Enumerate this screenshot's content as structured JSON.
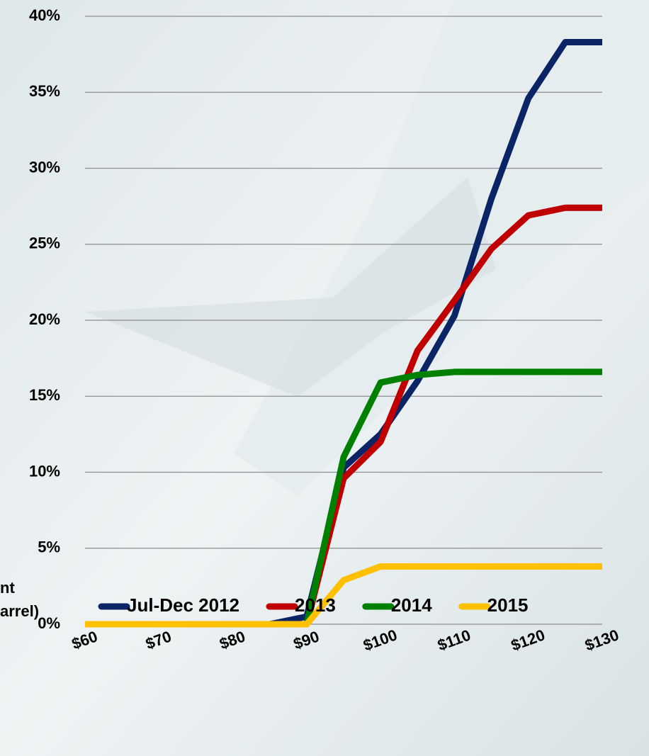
{
  "chart_data": {
    "type": "line",
    "x": [
      60,
      65,
      70,
      75,
      80,
      85,
      90,
      95,
      100,
      105,
      110,
      115,
      120,
      125,
      130
    ],
    "series": [
      {
        "name": "Jul-Dec 2012",
        "color": "#0b2466",
        "values": [
          0,
          0,
          0,
          0,
          0,
          0,
          0.5,
          10.3,
          12.5,
          16,
          20.3,
          28,
          34.6,
          38.3,
          38.3
        ]
      },
      {
        "name": "2013",
        "color": "#c00000",
        "values": [
          0,
          0,
          0,
          0,
          0,
          0,
          0,
          9.6,
          12,
          18,
          21.3,
          24.7,
          26.9,
          27.4,
          27.4
        ]
      },
      {
        "name": "2014",
        "color": "#008000",
        "values": [
          0,
          0,
          0,
          0,
          0,
          0,
          0,
          11,
          15.9,
          16.4,
          16.6,
          16.6,
          16.6,
          16.6,
          16.6
        ]
      },
      {
        "name": "2015",
        "color": "#ffc000",
        "values": [
          0,
          0,
          0,
          0,
          0,
          0,
          0,
          2.9,
          3.8,
          3.8,
          3.8,
          3.8,
          3.8,
          3.8,
          3.8
        ]
      }
    ],
    "xlim": [
      60,
      130
    ],
    "xticks": [
      {
        "value": 60,
        "label": "$60"
      },
      {
        "value": 70,
        "label": "$70"
      },
      {
        "value": 80,
        "label": "$80"
      },
      {
        "value": 90,
        "label": "$90"
      },
      {
        "value": 100,
        "label": "$100"
      },
      {
        "value": 110,
        "label": "$110"
      },
      {
        "value": 120,
        "label": "$120"
      },
      {
        "value": 130,
        "label": "$130"
      }
    ],
    "ylim": [
      0,
      40
    ],
    "yticks": [
      {
        "value": 0,
        "label": "0%"
      },
      {
        "value": 5,
        "label": "5%"
      },
      {
        "value": 10,
        "label": "10%"
      },
      {
        "value": 15,
        "label": "15%"
      },
      {
        "value": 20,
        "label": "20%"
      },
      {
        "value": 25,
        "label": "25%"
      },
      {
        "value": 30,
        "label": "30%"
      },
      {
        "value": 35,
        "label": "35%"
      },
      {
        "value": 40,
        "label": "40%"
      }
    ],
    "xlabel": [
      "nt",
      "arrel)"
    ],
    "grid": true,
    "legend": "bottom"
  }
}
